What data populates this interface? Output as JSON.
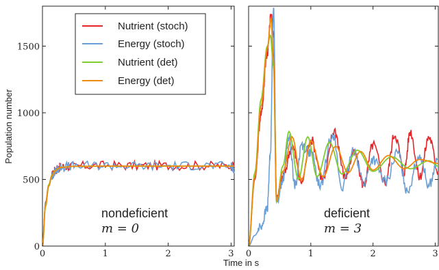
{
  "chart_data": {
    "type": "line",
    "xlabel": "Time in s",
    "ylabel": "Population number",
    "xlim": [
      0,
      3.05
    ],
    "ylim": [
      0,
      1800
    ],
    "xticks": [
      "0",
      "1",
      "2",
      "3"
    ],
    "yticks": [
      "0",
      "500",
      "1000",
      "1500"
    ],
    "legend": {
      "placement": "top-left of left panel",
      "entries": [
        {
          "label": "Nutrient (stoch)",
          "color": "#e4262a"
        },
        {
          "label": "Energy (stoch)",
          "color": "#6a9fd6"
        },
        {
          "label": "Nutrient (det)",
          "color": "#7fce2f"
        },
        {
          "label": "Energy (det)",
          "color": "#f08a0f"
        }
      ]
    },
    "panels": [
      {
        "name": "nondeficient",
        "annotation": {
          "line1": "nondeficient",
          "line2": "m = 0"
        },
        "series": [
          {
            "name": "Nutrient (stoch)",
            "color": "#e4262a",
            "x": [
              0,
              0.05,
              0.1,
              0.15,
              0.2,
              0.25,
              0.3,
              0.5,
              1,
              1.5,
              2,
              2.5,
              3,
              3.05
            ],
            "y": [
              0,
              330,
              460,
              530,
              565,
              585,
              595,
              600,
              605,
              602,
              603,
              604,
              600,
              600
            ]
          },
          {
            "name": "Energy (stoch)",
            "color": "#6a9fd6",
            "x": [
              0,
              0.05,
              0.1,
              0.15,
              0.2,
              0.25,
              0.3,
              0.5,
              1,
              1.5,
              2,
              2.5,
              3,
              3.05
            ],
            "y": [
              0,
              320,
              450,
              520,
              560,
              580,
              595,
              600,
              605,
              600,
              602,
              604,
              600,
              560
            ]
          },
          {
            "name": "Nutrient (det)",
            "color": "#7fce2f",
            "x": [
              0,
              0.05,
              0.1,
              0.15,
              0.2,
              0.25,
              0.3,
              0.5,
              1,
              1.5,
              2,
              2.5,
              3,
              3.05
            ],
            "y": [
              0,
              310,
              460,
              530,
              565,
              582,
              592,
              598,
              600,
              600,
              600,
              600,
              600,
              600
            ]
          },
          {
            "name": "Energy (det)",
            "color": "#f08a0f",
            "x": [
              0,
              0.05,
              0.1,
              0.15,
              0.2,
              0.25,
              0.3,
              0.5,
              1,
              1.5,
              2,
              2.5,
              3,
              3.05
            ],
            "y": [
              0,
              300,
              450,
              525,
              562,
              580,
              590,
              598,
              600,
              600,
              600,
              600,
              600,
              600
            ]
          }
        ]
      },
      {
        "name": "deficient",
        "annotation": {
          "line1": "deficient",
          "line2": "m = 3"
        },
        "series": [
          {
            "name": "Nutrient (stoch)",
            "color": "#e4262a",
            "x": [
              0,
              0.1,
              0.2,
              0.3,
              0.36,
              0.4,
              0.45,
              0.55,
              0.7,
              0.85,
              1.0,
              1.2,
              1.38,
              1.55,
              1.7,
              1.85,
              2.0,
              2.2,
              2.35,
              2.5,
              2.6,
              2.75,
              2.9,
              3.05
            ],
            "y": [
              0,
              500,
              1000,
              1450,
              1730,
              1600,
              350,
              520,
              750,
              480,
              800,
              500,
              870,
              520,
              700,
              460,
              760,
              480,
              840,
              560,
              860,
              520,
              820,
              560
            ]
          },
          {
            "name": "Energy (stoch)",
            "color": "#6a9fd6",
            "x": [
              0,
              0.1,
              0.2,
              0.3,
              0.35,
              0.4,
              0.45,
              0.55,
              0.65,
              0.75,
              0.85,
              1.0,
              1.15,
              1.35,
              1.5,
              1.7,
              1.85,
              2.0,
              2.2,
              2.4,
              2.55,
              2.75,
              2.9,
              3.05
            ],
            "y": [
              0,
              80,
              150,
              280,
              700,
              1800,
              330,
              500,
              820,
              450,
              760,
              700,
              450,
              850,
              440,
              720,
              470,
              650,
              480,
              700,
              420,
              680,
              460,
              650
            ]
          },
          {
            "name": "Nutrient (det)",
            "color": "#7fce2f",
            "x": [
              0,
              0.1,
              0.2,
              0.3,
              0.35,
              0.4,
              0.45,
              0.55,
              0.65,
              0.8,
              0.95,
              1.1,
              1.3,
              1.5,
              1.75,
              2.0,
              2.3,
              2.6,
              2.9,
              3.05
            ],
            "y": [
              0,
              550,
              1100,
              1500,
              1580,
              1350,
              330,
              600,
              860,
              500,
              820,
              520,
              780,
              540,
              720,
              560,
              670,
              580,
              640,
              600
            ]
          },
          {
            "name": "Energy (det)",
            "color": "#f08a0f",
            "x": [
              0,
              0.1,
              0.2,
              0.3,
              0.36,
              0.4,
              0.45,
              0.55,
              0.7,
              0.85,
              1.0,
              1.2,
              1.4,
              1.6,
              1.8,
              2.0,
              2.25,
              2.5,
              2.75,
              3.05
            ],
            "y": [
              0,
              520,
              1050,
              1480,
              1710,
              1400,
              340,
              560,
              820,
              490,
              790,
              520,
              750,
              550,
              710,
              570,
              680,
              580,
              650,
              620
            ]
          }
        ]
      }
    ]
  }
}
